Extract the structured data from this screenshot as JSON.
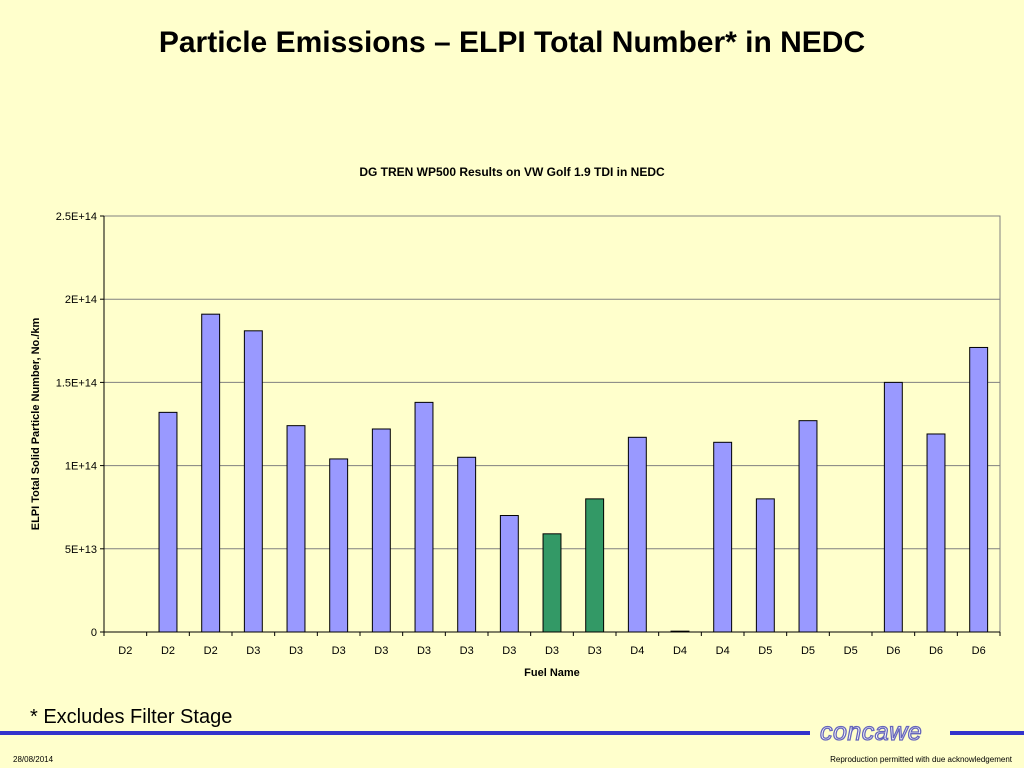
{
  "slide": {
    "title": "Particle Emissions – ELPI Total Number* in NEDC",
    "footnote": "* Excludes Filter Stage",
    "logo_text": "concawe",
    "date": "28/08/2014",
    "copyright": "Reproduction permitted with due acknowledgement"
  },
  "colors": {
    "background": "#ffffcc",
    "bar_default": "#9999ff",
    "bar_highlight": "#339966",
    "footer_bar": "#3333cc"
  },
  "chart_data": {
    "type": "bar",
    "title": "DG TREN WP500 Results on VW Golf 1.9 TDI in NEDC",
    "xlabel": "Fuel Name",
    "ylabel": "ELPI Total Solid Particle Number, No./km",
    "ylim": [
      0,
      250000000000000.0
    ],
    "yticks": [
      0,
      50000000000000.0,
      100000000000000.0,
      150000000000000.0,
      200000000000000.0,
      250000000000000.0
    ],
    "ytick_labels": [
      "0",
      "5E+13",
      "1E+14",
      "1.5E+14",
      "2E+14",
      "2.5E+14"
    ],
    "grid": true,
    "legend": false,
    "categories": [
      "D2",
      "D2",
      "D2",
      "D3",
      "D3",
      "D3",
      "D3",
      "D3",
      "D3",
      "D3",
      "D3",
      "D3",
      "D4",
      "D4",
      "D4",
      "D5",
      "D5",
      "D5",
      "D6",
      "D6",
      "D6"
    ],
    "values": [
      0,
      132000000000000.0,
      191000000000000.0,
      181000000000000.0,
      124000000000000.0,
      104000000000000.0,
      122000000000000.0,
      138000000000000.0,
      105000000000000.0,
      70000000000000.0,
      59000000000000.0,
      80000000000000.0,
      117000000000000.0,
      500000000000.0,
      114000000000000.0,
      80000000000000.0,
      127000000000000.0,
      0,
      150000000000000.0,
      119000000000000.0,
      171000000000000.0
    ],
    "highlight": [
      false,
      false,
      false,
      false,
      false,
      false,
      false,
      false,
      false,
      false,
      true,
      true,
      false,
      false,
      false,
      false,
      false,
      false,
      false,
      false,
      false
    ]
  }
}
